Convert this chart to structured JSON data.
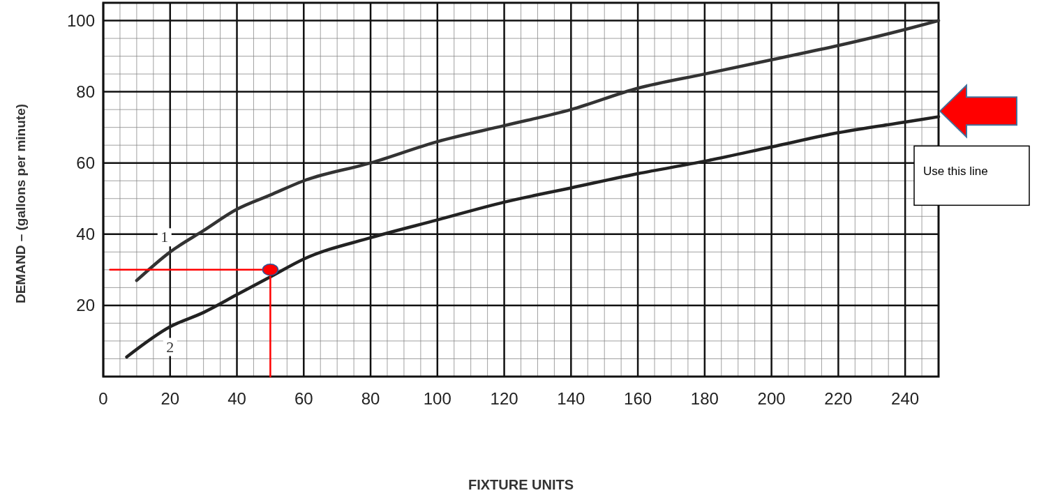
{
  "chart_data": {
    "type": "line",
    "xlabel": "FIXTURE UNITS",
    "ylabel": "DEMAND – (gallons per minute)",
    "xlim": [
      0,
      250
    ],
    "ylim": [
      0,
      105
    ],
    "xticks": [
      0,
      20,
      40,
      60,
      80,
      100,
      120,
      140,
      160,
      180,
      200,
      220,
      240
    ],
    "yticks": [
      20,
      40,
      60,
      80,
      100
    ],
    "grid": true,
    "series": [
      {
        "name": "1",
        "color": "#333333",
        "x": [
          10,
          20,
          30,
          40,
          50,
          60,
          80,
          100,
          120,
          140,
          160,
          180,
          200,
          220,
          240,
          250
        ],
        "values": [
          27,
          35,
          41,
          47,
          51,
          55,
          60,
          66,
          70.5,
          75,
          81,
          85,
          89,
          93,
          97.5,
          100
        ]
      },
      {
        "name": "2",
        "color": "#222222",
        "x": [
          7,
          20,
          30,
          40,
          50,
          60,
          80,
          100,
          120,
          140,
          160,
          180,
          200,
          220,
          240,
          250
        ],
        "values": [
          5.5,
          14,
          18,
          23,
          28,
          33,
          39,
          44,
          49,
          53,
          57,
          60.5,
          64.5,
          68.5,
          71.5,
          73
        ]
      },
      {
        "type": "line",
        "color": "#ff0000",
        "x": [
          2,
          50,
          50
        ],
        "values": [
          30,
          30,
          0
        ]
      },
      {
        "type": "scatter",
        "color": "#ff0000",
        "x": [
          50
        ],
        "values": [
          30
        ]
      }
    ],
    "annotations": [
      "Use this line"
    ]
  }
}
